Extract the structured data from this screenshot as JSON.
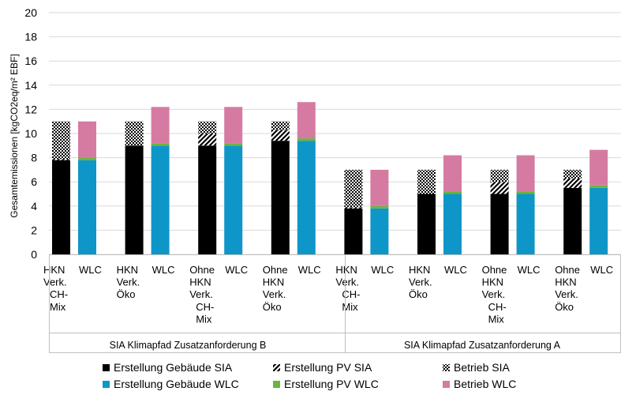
{
  "chart_data": {
    "type": "bar",
    "stacked": true,
    "ylabel": "Gesamtemissionen [kgCO2eq/m² EBF]",
    "ylim": [
      0,
      20
    ],
    "yticks": [
      0,
      2,
      4,
      6,
      8,
      10,
      12,
      14,
      16,
      18,
      20
    ],
    "grid": true,
    "legend_position": "bottom",
    "groups": [
      {
        "label": "SIA Klimapfad Zusatzanforderung B",
        "categories": [
          {
            "label": [
              "HKN",
              "Verk.",
              "CH-",
              "Mix"
            ],
            "bars": [
              {
                "label": "",
                "method": "SIA",
                "segments": {
                  "gebaeude": 7.8,
                  "pv": 0.1,
                  "betrieb": 3.1
                }
              },
              {
                "label": "WLC",
                "method": "WLC",
                "segments": {
                  "gebaeude": 7.8,
                  "pv": 0.2,
                  "betrieb": 3.0
                }
              }
            ]
          },
          {
            "label": [
              "HKN",
              "Verk.",
              "Öko"
            ],
            "bars": [
              {
                "label": "",
                "method": "SIA",
                "segments": {
                  "gebaeude": 9.0,
                  "pv": 0.0,
                  "betrieb": 2.0
                }
              },
              {
                "label": "WLC",
                "method": "WLC",
                "segments": {
                  "gebaeude": 9.0,
                  "pv": 0.2,
                  "betrieb": 3.0
                }
              }
            ]
          },
          {
            "label": [
              "Ohne",
              "HKN",
              "Verk.",
              "CH-",
              "Mix"
            ],
            "bars": [
              {
                "label": "",
                "method": "SIA",
                "segments": {
                  "gebaeude": 9.0,
                  "pv": 1.0,
                  "betrieb": 1.0
                }
              },
              {
                "label": "WLC",
                "method": "WLC",
                "segments": {
                  "gebaeude": 9.0,
                  "pv": 0.2,
                  "betrieb": 3.0
                }
              }
            ]
          },
          {
            "label": [
              "Ohne",
              "HKN",
              "Verk.",
              "Öko"
            ],
            "bars": [
              {
                "label": "",
                "method": "SIA",
                "segments": {
                  "gebaeude": 9.4,
                  "pv": 0.9,
                  "betrieb": 0.7
                }
              },
              {
                "label": "WLC",
                "method": "WLC",
                "segments": {
                  "gebaeude": 9.4,
                  "pv": 0.2,
                  "betrieb": 3.0
                }
              }
            ]
          }
        ]
      },
      {
        "label": "SIA Klimapfad Zusatzanforderung A",
        "categories": [
          {
            "label": [
              "HKN",
              "Verk.",
              "CH-",
              "Mix"
            ],
            "bars": [
              {
                "label": "",
                "method": "SIA",
                "segments": {
                  "gebaeude": 3.8,
                  "pv": 0.1,
                  "betrieb": 3.1
                }
              },
              {
                "label": "WLC",
                "method": "WLC",
                "segments": {
                  "gebaeude": 3.8,
                  "pv": 0.2,
                  "betrieb": 3.0
                }
              }
            ]
          },
          {
            "label": [
              "HKN",
              "Verk.",
              "Öko"
            ],
            "bars": [
              {
                "label": "",
                "method": "SIA",
                "segments": {
                  "gebaeude": 5.0,
                  "pv": 0.0,
                  "betrieb": 2.0
                }
              },
              {
                "label": "WLC",
                "method": "WLC",
                "segments": {
                  "gebaeude": 5.0,
                  "pv": 0.2,
                  "betrieb": 3.0
                }
              }
            ]
          },
          {
            "label": [
              "Ohne",
              "HKN",
              "Verk.",
              "CH-",
              "Mix"
            ],
            "bars": [
              {
                "label": "",
                "method": "SIA",
                "segments": {
                  "gebaeude": 5.0,
                  "pv": 1.0,
                  "betrieb": 1.0
                }
              },
              {
                "label": "WLC",
                "method": "WLC",
                "segments": {
                  "gebaeude": 5.0,
                  "pv": 0.2,
                  "betrieb": 3.0
                }
              }
            ]
          },
          {
            "label": [
              "Ohne",
              "HKN",
              "Verk.",
              "Öko"
            ],
            "bars": [
              {
                "label": "",
                "method": "SIA",
                "segments": {
                  "gebaeude": 5.5,
                  "pv": 0.8,
                  "betrieb": 0.7
                }
              },
              {
                "label": "WLC",
                "method": "WLC",
                "segments": {
                  "gebaeude": 5.5,
                  "pv": 0.2,
                  "betrieb": 2.95
                }
              }
            ]
          }
        ]
      }
    ],
    "legend": [
      {
        "key": "gebaeude_sia",
        "label": "Erstellung Gebäude SIA",
        "fill": "black"
      },
      {
        "key": "pv_sia",
        "label": "Erstellung PV SIA",
        "fill": "diag"
      },
      {
        "key": "betrieb_sia",
        "label": "Betrieb SIA",
        "fill": "check"
      },
      {
        "key": "gebaeude_wlc",
        "label": "Erstellung Gebäude WLC",
        "fill": "blue"
      },
      {
        "key": "pv_wlc",
        "label": "Erstellung PV WLC",
        "fill": "green"
      },
      {
        "key": "betrieb_wlc",
        "label": "Betrieb WLC",
        "fill": "pink"
      }
    ],
    "colors": {
      "black": "#000000",
      "blue": "#0f96c8",
      "green": "#6cb33f",
      "pink": "#d57ba2",
      "grid": "#d9d9d9",
      "axis": "#bfbfbf",
      "text": "#000000"
    }
  }
}
